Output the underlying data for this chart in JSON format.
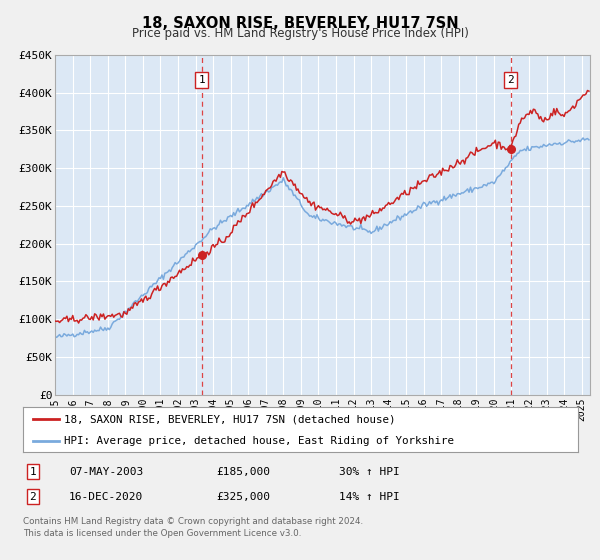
{
  "title": "18, SAXON RISE, BEVERLEY, HU17 7SN",
  "subtitle": "Price paid vs. HM Land Registry's House Price Index (HPI)",
  "legend_line1": "18, SAXON RISE, BEVERLEY, HU17 7SN (detached house)",
  "legend_line2": "HPI: Average price, detached house, East Riding of Yorkshire",
  "table_row1": [
    "1",
    "07-MAY-2003",
    "£185,000",
    "30% ↑ HPI"
  ],
  "table_row2": [
    "2",
    "16-DEC-2020",
    "£325,000",
    "14% ↑ HPI"
  ],
  "footer1": "Contains HM Land Registry data © Crown copyright and database right 2024.",
  "footer2": "This data is licensed under the Open Government Licence v3.0.",
  "hpi_color": "#7aaadd",
  "price_color": "#cc2222",
  "marker_color": "#cc2222",
  "vline_color": "#dd4444",
  "plot_bg_color": "#dce8f5",
  "fig_bg_color": "#f0f0f0",
  "grid_color": "#ffffff",
  "ylim": [
    0,
    450000
  ],
  "xlim_start": 1995.0,
  "xlim_end": 2025.5,
  "marker1_x": 2003.35,
  "marker1_y": 185000,
  "marker2_x": 2020.96,
  "marker2_y": 325000,
  "yticks": [
    0,
    50000,
    100000,
    150000,
    200000,
    250000,
    300000,
    350000,
    400000,
    450000
  ],
  "ytick_labels": [
    "£0",
    "£50K",
    "£100K",
    "£150K",
    "£200K",
    "£250K",
    "£300K",
    "£350K",
    "£400K",
    "£450K"
  ]
}
